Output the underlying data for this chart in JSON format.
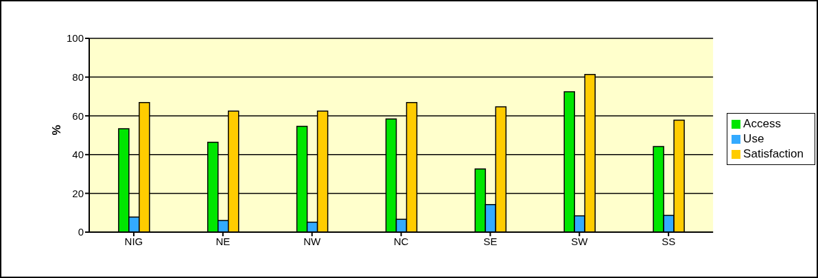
{
  "chart_data": {
    "type": "bar",
    "ylabel": "%",
    "categories": [
      "NIG",
      "NE",
      "NW",
      "NC",
      "SE",
      "SW",
      "SS"
    ],
    "series": [
      {
        "name": "Access",
        "color": "#00e600",
        "values": [
          53.4,
          46.4,
          54.6,
          58.4,
          32.6,
          72.4,
          44.2
        ]
      },
      {
        "name": "Use",
        "color": "#33aaff",
        "values": [
          7.8,
          6.0,
          5.1,
          6.6,
          14.2,
          8.4,
          8.7
        ]
      },
      {
        "name": "Satisfaction",
        "color": "#ffcc00",
        "values": [
          66.9,
          62.5,
          62.5,
          66.9,
          64.7,
          81.4,
          57.8
        ]
      }
    ],
    "ylim": [
      0,
      100
    ],
    "yticks": [
      0,
      20,
      40,
      60,
      80,
      100
    ],
    "grid": "y",
    "legend": "right"
  }
}
